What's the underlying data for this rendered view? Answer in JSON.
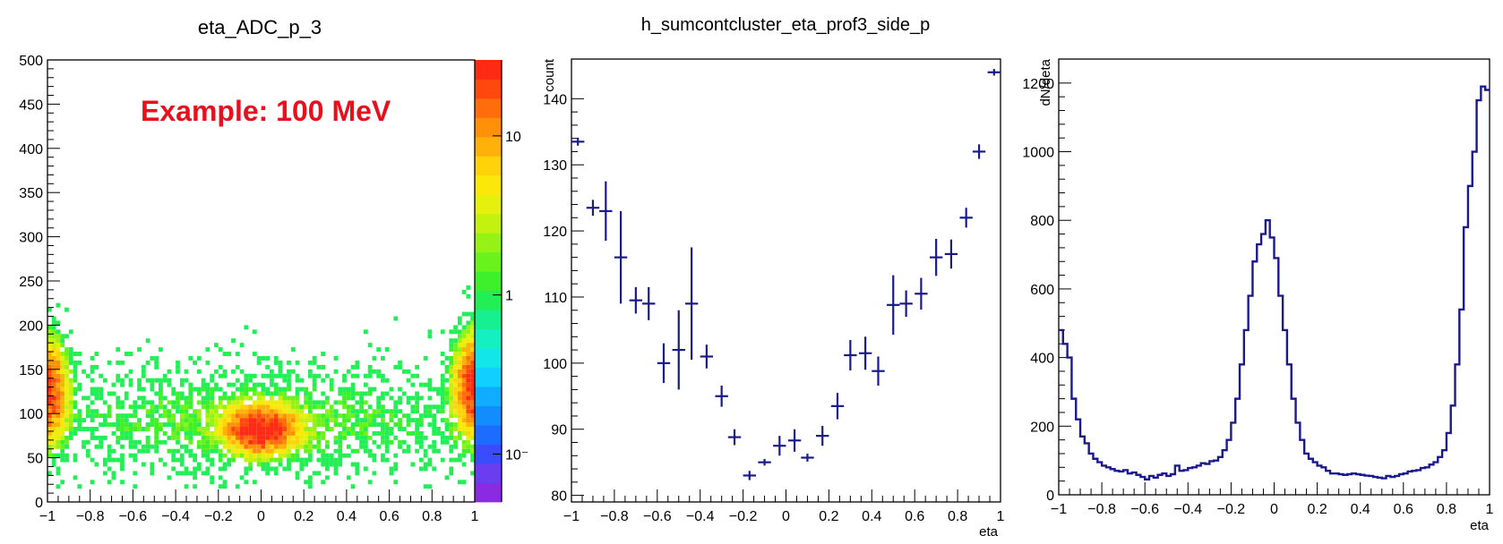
{
  "chart_data": [
    {
      "type": "heatmap",
      "title": "eta_ADC_p_3",
      "annotation": "Example: 100 MeV",
      "xlim": [
        -1,
        1
      ],
      "ylim": [
        0,
        500
      ],
      "x_ticks": [
        -1,
        -0.8,
        -0.6,
        -0.4,
        -0.2,
        0,
        0.2,
        0.4,
        0.6,
        0.8,
        1
      ],
      "x_tick_labels": [
        "−1",
        "−0.8",
        "−0.6",
        "−0.4",
        "−0.2",
        "0",
        "0.2",
        "0.4",
        "0.6",
        "0.8",
        "1"
      ],
      "y_ticks": [
        0,
        50,
        100,
        150,
        200,
        250,
        300,
        350,
        400,
        450,
        500
      ],
      "y_tick_labels": [
        "0",
        "50",
        "100",
        "150",
        "200",
        "250",
        "300",
        "350",
        "400",
        "450",
        "500"
      ],
      "colorbar": {
        "scale": "log",
        "range": [
          0.05,
          30
        ],
        "ticks": [
          0.1,
          1,
          10
        ],
        "tick_labels": [
          "10⁻",
          "1",
          "10"
        ],
        "colors": [
          "#8a2be2",
          "#6a3df0",
          "#3a4cff",
          "#1e6cff",
          "#128cff",
          "#10acff",
          "#11cfff",
          "#12e6e6",
          "#14f0c0",
          "#16f090",
          "#22ee55",
          "#3ef02a",
          "#6af21c",
          "#96f214",
          "#c3f210",
          "#e6f00d",
          "#fbe80a",
          "#ffd20a",
          "#ffb009",
          "#ff9008",
          "#ff6e0a",
          "#ff480c",
          "#ff2a14"
        ]
      },
      "distribution": {
        "components": [
          {
            "x_center": 0.0,
            "x_sigma": 0.09,
            "y_center": 82,
            "y_sigma": 14,
            "peak": 32
          },
          {
            "x_center": -1.0,
            "x_sigma": 0.05,
            "y_center": 125,
            "y_sigma": 30,
            "peak": 22
          },
          {
            "x_center": 1.0,
            "x_sigma": 0.05,
            "y_center": 130,
            "y_sigma": 30,
            "peak": 26
          },
          {
            "x_center": 0.0,
            "x_sigma": 0.7,
            "y_center": 92,
            "y_sigma": 35,
            "peak": 1.6
          }
        ],
        "x_bins": 100,
        "y_bins": 100
      }
    },
    {
      "type": "scatter",
      "title": "h_sumcontcluster_eta_prof3_side_p",
      "xlabel": "eta",
      "ylabel": "count",
      "xlim": [
        -1,
        1
      ],
      "ylim": [
        79,
        146
      ],
      "x_ticks": [
        -1,
        -0.8,
        -0.6,
        -0.4,
        -0.2,
        0,
        0.2,
        0.4,
        0.6,
        0.8,
        1
      ],
      "x_tick_labels": [
        "−1",
        "−0.8",
        "−0.6",
        "−0.4",
        "−0.2",
        "0",
        "0.2",
        "0.4",
        "0.6",
        "0.8",
        "1"
      ],
      "y_ticks": [
        80,
        90,
        100,
        110,
        120,
        130,
        140
      ],
      "y_tick_labels": [
        "80",
        "90",
        "100",
        "110",
        "120",
        "130",
        "140"
      ],
      "color": "#1a1a8c",
      "x_half_width": 0.03,
      "points": [
        {
          "x": -0.97,
          "y": 133.5,
          "err": 0.6
        },
        {
          "x": -0.9,
          "y": 123.5,
          "err": 1.2
        },
        {
          "x": -0.84,
          "y": 123,
          "err": 4.5
        },
        {
          "x": -0.77,
          "y": 116,
          "err": 7
        },
        {
          "x": -0.7,
          "y": 109.5,
          "err": 2
        },
        {
          "x": -0.64,
          "y": 109,
          "err": 2.5
        },
        {
          "x": -0.57,
          "y": 100,
          "err": 3
        },
        {
          "x": -0.5,
          "y": 102,
          "err": 6
        },
        {
          "x": -0.44,
          "y": 109,
          "err": 8.5
        },
        {
          "x": -0.37,
          "y": 101,
          "err": 1.8
        },
        {
          "x": -0.3,
          "y": 95,
          "err": 1.6
        },
        {
          "x": -0.24,
          "y": 88.8,
          "err": 1.2
        },
        {
          "x": -0.17,
          "y": 83,
          "err": 0.7
        },
        {
          "x": -0.1,
          "y": 85,
          "err": 0.5
        },
        {
          "x": -0.03,
          "y": 87.5,
          "err": 1.5
        },
        {
          "x": 0.04,
          "y": 88.3,
          "err": 1.7
        },
        {
          "x": 0.1,
          "y": 85.7,
          "err": 0.6
        },
        {
          "x": 0.17,
          "y": 89,
          "err": 1.5
        },
        {
          "x": 0.24,
          "y": 93.5,
          "err": 2
        },
        {
          "x": 0.3,
          "y": 101.2,
          "err": 2.3
        },
        {
          "x": 0.37,
          "y": 101.5,
          "err": 2.5
        },
        {
          "x": 0.43,
          "y": 98.8,
          "err": 2.2
        },
        {
          "x": 0.5,
          "y": 108.8,
          "err": 4.5
        },
        {
          "x": 0.56,
          "y": 109,
          "err": 2
        },
        {
          "x": 0.63,
          "y": 110.5,
          "err": 2.4
        },
        {
          "x": 0.7,
          "y": 116,
          "err": 2.8
        },
        {
          "x": 0.77,
          "y": 116.5,
          "err": 2.2
        },
        {
          "x": 0.84,
          "y": 122,
          "err": 1.5
        },
        {
          "x": 0.9,
          "y": 132,
          "err": 1.1
        },
        {
          "x": 0.97,
          "y": 144,
          "err": 0.5
        }
      ]
    },
    {
      "type": "line",
      "drawstyle": "steps",
      "xlabel": "eta",
      "ylabel": "dN/deta",
      "xlim": [
        -1,
        1
      ],
      "ylim": [
        0,
        1270
      ],
      "x_ticks": [
        -1,
        -0.8,
        -0.6,
        -0.4,
        -0.2,
        0,
        0.2,
        0.4,
        0.6,
        0.8,
        1
      ],
      "x_tick_labels": [
        "−1",
        "−0.8",
        "−0.6",
        "−0.4",
        "−0.2",
        "0",
        "0.2",
        "0.4",
        "0.6",
        "0.8",
        "1"
      ],
      "y_ticks": [
        0,
        200,
        400,
        600,
        800,
        1000,
        1200
      ],
      "y_tick_labels": [
        "0",
        "200",
        "400",
        "600",
        "800",
        "1000",
        "1200"
      ],
      "color": "#1a1a8c",
      "bin_width": 0.02,
      "x": [
        -0.99,
        -0.97,
        -0.95,
        -0.93,
        -0.91,
        -0.89,
        -0.87,
        -0.85,
        -0.83,
        -0.81,
        -0.79,
        -0.77,
        -0.75,
        -0.73,
        -0.71,
        -0.69,
        -0.67,
        -0.65,
        -0.63,
        -0.61,
        -0.59,
        -0.57,
        -0.55,
        -0.53,
        -0.51,
        -0.49,
        -0.47,
        -0.45,
        -0.43,
        -0.41,
        -0.39,
        -0.37,
        -0.35,
        -0.33,
        -0.31,
        -0.29,
        -0.27,
        -0.25,
        -0.23,
        -0.21,
        -0.19,
        -0.17,
        -0.15,
        -0.13,
        -0.11,
        -0.09,
        -0.07,
        -0.05,
        -0.03,
        -0.01,
        0.01,
        0.03,
        0.05,
        0.07,
        0.09,
        0.11,
        0.13,
        0.15,
        0.17,
        0.19,
        0.21,
        0.23,
        0.25,
        0.27,
        0.29,
        0.31,
        0.33,
        0.35,
        0.37,
        0.39,
        0.41,
        0.43,
        0.45,
        0.47,
        0.49,
        0.51,
        0.53,
        0.55,
        0.57,
        0.59,
        0.61,
        0.63,
        0.65,
        0.67,
        0.69,
        0.71,
        0.73,
        0.75,
        0.77,
        0.79,
        0.81,
        0.83,
        0.85,
        0.87,
        0.89,
        0.91,
        0.93,
        0.95,
        0.97,
        0.99
      ],
      "values": [
        480,
        440,
        400,
        280,
        220,
        170,
        150,
        120,
        105,
        95,
        85,
        80,
        75,
        70,
        68,
        72,
        62,
        65,
        58,
        52,
        45,
        55,
        50,
        58,
        62,
        55,
        60,
        85,
        70,
        72,
        78,
        80,
        85,
        92,
        90,
        98,
        100,
        110,
        130,
        160,
        210,
        280,
        380,
        480,
        580,
        680,
        730,
        760,
        800,
        750,
        690,
        580,
        480,
        380,
        280,
        210,
        160,
        120,
        105,
        95,
        85,
        80,
        70,
        62,
        62,
        60,
        58,
        60,
        62,
        60,
        58,
        56,
        55,
        52,
        50,
        48,
        55,
        52,
        55,
        60,
        62,
        68,
        70,
        72,
        78,
        80,
        88,
        95,
        110,
        130,
        180,
        260,
        380,
        540,
        780,
        900,
        1000,
        1150,
        1190,
        1180
      ]
    }
  ]
}
